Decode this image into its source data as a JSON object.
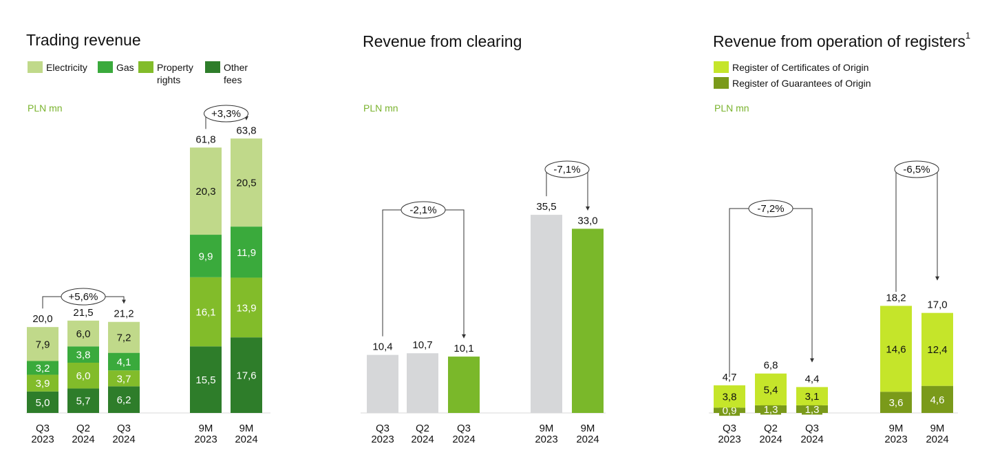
{
  "colors": {
    "electricity": "#c0d98a",
    "gas": "#3aaa3c",
    "property_rights": "#82bc2a",
    "other_fees": "#2e7d2a",
    "clearing_gray": "#d6d7d9",
    "clearing_green": "#7ab82a",
    "register_certificates": "#c5e52a",
    "register_guarantees": "#7a9a1a",
    "unit_text": "#7ab32e"
  },
  "chart_data": [
    {
      "type": "bar",
      "stacked": true,
      "title": "Trading revenue",
      "unit": "PLN mn",
      "legend": [
        {
          "key": "electricity",
          "label": "Electricity"
        },
        {
          "key": "gas",
          "label": "Gas"
        },
        {
          "key": "property_rights",
          "label": "Property\nrights"
        },
        {
          "key": "other_fees",
          "label": "Other\nfees"
        }
      ],
      "categories": [
        {
          "line1": "Q3",
          "line2": "2023"
        },
        {
          "line1": "Q2",
          "line2": "2024"
        },
        {
          "line1": "Q3",
          "line2": "2024"
        },
        {
          "line1": "9M",
          "line2": "2023"
        },
        {
          "line1": "9M",
          "line2": "2024"
        }
      ],
      "series": [
        {
          "name": "Other fees",
          "key": "other_fees",
          "values": [
            5.0,
            5.7,
            6.2,
            15.5,
            17.6
          ],
          "labels": [
            "5,0",
            "5,7",
            "6,2",
            "15,5",
            "17,6"
          ]
        },
        {
          "name": "Property rights",
          "key": "property_rights",
          "values": [
            3.9,
            6.0,
            3.7,
            16.1,
            13.9
          ],
          "labels": [
            "3,9",
            "6,0",
            "3,7",
            "16,1",
            "13,9"
          ]
        },
        {
          "name": "Gas",
          "key": "gas",
          "values": [
            3.2,
            3.8,
            4.1,
            9.9,
            11.9
          ],
          "labels": [
            "3,2",
            "3,8",
            "4,1",
            "9,9",
            "11,9"
          ]
        },
        {
          "name": "Electricity",
          "key": "electricity",
          "values": [
            7.9,
            6.0,
            7.2,
            20.3,
            20.5
          ],
          "labels": [
            "7,9",
            "6,0",
            "7,2",
            "20,3",
            "20,5"
          ]
        }
      ],
      "totals": [
        20.0,
        21.5,
        21.2,
        61.8,
        63.8
      ],
      "total_labels": [
        "20,0",
        "21,5",
        "21,2",
        "61,8",
        "63,8"
      ],
      "comparisons": [
        {
          "label": "+5,6%",
          "from": 0,
          "to": 2
        },
        {
          "label": "+3,3%",
          "from": 3,
          "to": 4
        }
      ]
    },
    {
      "type": "bar",
      "title": "Revenue from clearing",
      "unit": "PLN mn",
      "categories": [
        {
          "line1": "Q3",
          "line2": "2023"
        },
        {
          "line1": "Q2",
          "line2": "2024"
        },
        {
          "line1": "Q3",
          "line2": "2024"
        },
        {
          "line1": "9M",
          "line2": "2023"
        },
        {
          "line1": "9M",
          "line2": "2024"
        }
      ],
      "values": [
        10.4,
        10.7,
        10.1,
        35.5,
        33.0
      ],
      "value_labels": [
        "10,4",
        "10,7",
        "10,1",
        "35,5",
        "33,0"
      ],
      "bar_colors": [
        "clearing_gray",
        "clearing_gray",
        "clearing_green",
        "clearing_gray",
        "clearing_green"
      ],
      "comparisons": [
        {
          "label": "-2,1%",
          "from": 0,
          "to": 2
        },
        {
          "label": "-7,1%",
          "from": 3,
          "to": 4
        }
      ]
    },
    {
      "type": "bar",
      "stacked": true,
      "title": "Revenue from operation of registers",
      "title_sup": "1",
      "unit": "PLN mn",
      "legend": [
        {
          "key": "register_certificates",
          "label": "Register of Certificates of Origin"
        },
        {
          "key": "register_guarantees",
          "label": "Register of Guarantees of Origin"
        }
      ],
      "categories": [
        {
          "line1": "Q3",
          "line2": "2023"
        },
        {
          "line1": "Q2",
          "line2": "2024"
        },
        {
          "line1": "Q3",
          "line2": "2024"
        },
        {
          "line1": "9M",
          "line2": "2023"
        },
        {
          "line1": "9M",
          "line2": "2024"
        }
      ],
      "series": [
        {
          "name": "Register of Guarantees of Origin",
          "key": "register_guarantees",
          "values": [
            0.9,
            1.3,
            1.3,
            3.6,
            4.6
          ],
          "labels": [
            "0,9",
            "1,3",
            "1,3",
            "3,6",
            "4,6"
          ]
        },
        {
          "name": "Register of Certificates of Origin",
          "key": "register_certificates",
          "values": [
            3.8,
            5.4,
            3.1,
            14.6,
            12.4
          ],
          "labels": [
            "3,8",
            "5,4",
            "3,1",
            "14,6",
            "12,4"
          ]
        }
      ],
      "totals": [
        4.7,
        6.8,
        4.4,
        18.2,
        17.0
      ],
      "total_labels": [
        "4,7",
        "6,8",
        "4,4",
        "18,2",
        "17,0"
      ],
      "comparisons": [
        {
          "label": "-7,2%",
          "from": 0,
          "to": 2
        },
        {
          "label": "-6,5%",
          "from": 3,
          "to": 4
        }
      ]
    }
  ]
}
